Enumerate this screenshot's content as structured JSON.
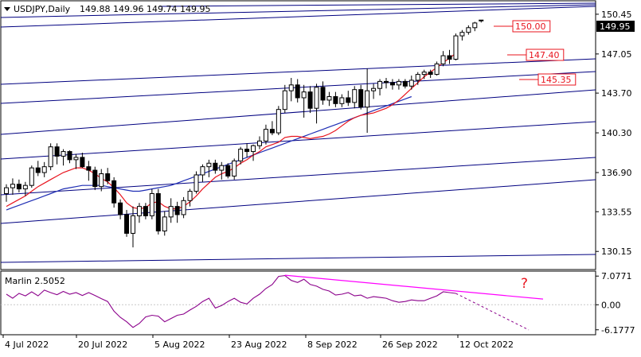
{
  "header": {
    "symbol": "USDJPY,Daily",
    "ohlc": "149.88 149.96 149.74 149.95",
    "price_tag": "149.95"
  },
  "indicator": {
    "name": "Marlin 2.5052",
    "question_mark": "?"
  },
  "levels": [
    {
      "value": "150.00"
    },
    {
      "value": "147.40"
    },
    {
      "value": "145.35"
    }
  ],
  "colors": {
    "price_line": "#000000",
    "ma_red": "#e8141e",
    "ma_blue": "#1e2db4",
    "channel": "#000080",
    "marlin": "#8b008b",
    "divergence": "#ff00ff",
    "level_box": "#e8141e"
  },
  "chart_data": {
    "type": "candlestick",
    "x_tick_labels": [
      "4 Jul 2022",
      "20 Jul 2022",
      "5 Aug 2022",
      "23 Aug 2022",
      "8 Sep 2022",
      "26 Sep 2022",
      "12 Oct 2022"
    ],
    "y_tick_labels": [
      "150.45",
      "147.05",
      "143.70",
      "140.30",
      "136.90",
      "133.55",
      "130.15"
    ],
    "ylim": [
      128.6,
      151.6
    ],
    "indicator_y_tick_labels": [
      "7.0771",
      "0.00",
      "-6.1777"
    ],
    "indicator_ylim": [
      -7.4,
      8.3
    ],
    "candles": [
      [
        135.1,
        135.9,
        134.4,
        135.6
      ],
      [
        135.6,
        136.4,
        135.0,
        135.9
      ],
      [
        135.9,
        136.3,
        135.2,
        135.5
      ],
      [
        135.5,
        136.1,
        134.9,
        135.8
      ],
      [
        135.8,
        137.5,
        135.6,
        137.3
      ],
      [
        137.3,
        137.9,
        136.6,
        136.9
      ],
      [
        136.9,
        137.8,
        136.5,
        137.4
      ],
      [
        137.4,
        139.4,
        137.1,
        139.1
      ],
      [
        139.1,
        139.4,
        137.6,
        138.3
      ],
      [
        138.3,
        138.9,
        137.5,
        138.7
      ],
      [
        138.7,
        138.8,
        137.7,
        138.0
      ],
      [
        138.0,
        138.5,
        137.2,
        138.2
      ],
      [
        138.2,
        138.6,
        137.3,
        137.4
      ],
      [
        137.4,
        137.9,
        136.2,
        137.1
      ],
      [
        137.1,
        137.4,
        135.4,
        135.7
      ],
      [
        135.7,
        137.2,
        135.3,
        136.8
      ],
      [
        136.8,
        137.3,
        135.9,
        136.2
      ],
      [
        136.2,
        136.5,
        133.9,
        134.3
      ],
      [
        134.3,
        134.6,
        132.9,
        133.3
      ],
      [
        133.3,
        133.7,
        131.4,
        131.7
      ],
      [
        131.7,
        134.0,
        130.5,
        133.2
      ],
      [
        133.2,
        134.3,
        132.6,
        134.0
      ],
      [
        134.0,
        134.3,
        132.9,
        133.2
      ],
      [
        133.2,
        135.5,
        132.9,
        135.1
      ],
      [
        135.1,
        135.5,
        131.6,
        131.9
      ],
      [
        131.9,
        133.6,
        131.5,
        133.1
      ],
      [
        133.1,
        134.7,
        132.6,
        134.0
      ],
      [
        134.0,
        134.4,
        132.6,
        133.3
      ],
      [
        133.3,
        134.8,
        133.0,
        134.5
      ],
      [
        134.5,
        135.5,
        134.0,
        135.3
      ],
      [
        135.3,
        137.0,
        135.1,
        136.7
      ],
      [
        136.7,
        137.6,
        136.1,
        137.4
      ],
      [
        137.4,
        138.0,
        136.5,
        137.7
      ],
      [
        137.7,
        138.0,
        136.8,
        137.1
      ],
      [
        137.1,
        137.8,
        136.3,
        137.5
      ],
      [
        137.5,
        137.7,
        136.4,
        136.6
      ],
      [
        136.6,
        138.1,
        136.3,
        137.9
      ],
      [
        137.9,
        139.1,
        137.6,
        138.9
      ],
      [
        138.9,
        139.4,
        138.2,
        138.7
      ],
      [
        138.7,
        139.3,
        137.9,
        139.2
      ],
      [
        139.2,
        140.0,
        138.9,
        139.6
      ],
      [
        139.6,
        141.0,
        139.3,
        140.6
      ],
      [
        140.6,
        141.3,
        140.1,
        140.3
      ],
      [
        140.3,
        142.6,
        140.1,
        142.3
      ],
      [
        142.3,
        144.4,
        142.0,
        143.9
      ],
      [
        143.9,
        145.0,
        143.0,
        144.4
      ],
      [
        144.4,
        144.9,
        142.9,
        143.3
      ],
      [
        143.3,
        144.4,
        141.6,
        143.8
      ],
      [
        143.8,
        144.3,
        142.0,
        142.4
      ],
      [
        142.4,
        144.5,
        141.1,
        144.2
      ],
      [
        144.2,
        144.7,
        142.7,
        143.1
      ],
      [
        143.1,
        143.8,
        142.6,
        143.4
      ],
      [
        143.4,
        143.8,
        142.5,
        142.8
      ],
      [
        142.8,
        143.6,
        142.5,
        143.3
      ],
      [
        143.3,
        143.9,
        142.6,
        142.9
      ],
      [
        142.9,
        144.3,
        142.4,
        144.0
      ],
      [
        144.0,
        144.4,
        142.3,
        142.5
      ],
      [
        142.5,
        145.8,
        140.3,
        143.9
      ],
      [
        143.9,
        144.5,
        143.2,
        144.1
      ],
      [
        144.1,
        144.9,
        143.5,
        144.7
      ],
      [
        144.7,
        145.0,
        144.1,
        144.6
      ],
      [
        144.6,
        144.9,
        144.0,
        144.4
      ],
      [
        144.4,
        144.9,
        144.0,
        144.7
      ],
      [
        144.7,
        144.9,
        144.1,
        144.3
      ],
      [
        144.3,
        145.2,
        144.0,
        144.8
      ],
      [
        144.8,
        145.5,
        144.4,
        145.3
      ],
      [
        145.3,
        145.7,
        144.9,
        145.5
      ],
      [
        145.5,
        145.7,
        145.0,
        145.3
      ],
      [
        145.3,
        146.4,
        145.2,
        146.2
      ],
      [
        146.2,
        147.3,
        146.0,
        146.9
      ],
      [
        146.9,
        147.4,
        146.2,
        146.6
      ],
      [
        146.6,
        148.8,
        146.5,
        148.6
      ],
      [
        148.6,
        149.1,
        148.2,
        148.9
      ],
      [
        148.9,
        149.5,
        148.7,
        149.3
      ],
      [
        149.3,
        149.8,
        149.0,
        149.7
      ],
      [
        149.88,
        149.96,
        149.74,
        149.95
      ]
    ],
    "ma_red": [
      134.0,
      134.3,
      134.6,
      134.9,
      135.3,
      135.7,
      136.0,
      136.3,
      136.6,
      136.9,
      137.1,
      137.3,
      137.3,
      137.1,
      136.8,
      136.4,
      136.1,
      135.6,
      135.0,
      134.3,
      133.9,
      133.8,
      133.9,
      134.3,
      134.4,
      134.0,
      133.8,
      133.8,
      134.0,
      134.4,
      134.9,
      135.5,
      136.0,
      136.5,
      136.8,
      137.0,
      137.3,
      137.7,
      138.0,
      138.4,
      138.7,
      139.1,
      139.3,
      139.5,
      139.9,
      140.0,
      140.0,
      139.9,
      139.8,
      139.9,
      140.0,
      140.2,
      140.5,
      140.9,
      141.3,
      141.6,
      141.8,
      141.9,
      142.0,
      142.2,
      142.4,
      142.7,
      143.1,
      143.6,
      144.1,
      144.6,
      145.1,
      145.5,
      145.9,
      146.3,
      146.7,
      147.1
    ],
    "ma_blue": [
      133.7,
      133.9,
      134.1,
      134.3,
      134.5,
      134.7,
      134.9,
      135.1,
      135.3,
      135.5,
      135.6,
      135.7,
      135.8,
      135.8,
      135.8,
      135.8,
      135.7,
      135.6,
      135.5,
      135.4,
      135.3,
      135.3,
      135.4,
      135.5,
      135.6,
      135.7,
      135.8,
      136.0,
      136.2,
      136.4,
      136.6,
      136.8,
      137.0,
      137.2,
      137.4,
      137.6,
      137.8,
      138.0,
      138.2,
      138.4,
      138.6,
      138.8,
      139.0,
      139.2,
      139.4,
      139.6,
      139.8,
      140.0,
      140.2,
      140.4,
      140.6,
      140.8,
      141.0,
      141.2,
      141.4,
      141.6,
      141.8,
      142.0,
      142.2,
      142.4,
      142.6,
      142.8,
      143.0,
      143.2,
      143.4
    ],
    "marlin": [
      2.6,
      1.6,
      2.8,
      2.2,
      3.2,
      2.2,
      3.6,
      3.0,
      2.5,
      3.3,
      2.6,
      3.0,
      2.3,
      3.0,
      2.3,
      1.5,
      0.8,
      -1.6,
      -3.1,
      -4.2,
      -5.6,
      -4.6,
      -3.0,
      -2.6,
      -2.8,
      -4.2,
      -3.4,
      -2.6,
      -2.3,
      -1.3,
      -0.4,
      0.8,
      1.6,
      -0.8,
      -0.2,
      0.8,
      1.6,
      0.6,
      0.2,
      1.6,
      2.6,
      4.0,
      5.0,
      7.0,
      7.2,
      6.0,
      5.5,
      6.3,
      5.0,
      4.6,
      3.8,
      3.4,
      2.4,
      2.6,
      3.0,
      2.2,
      2.4,
      1.6,
      2.0,
      1.8,
      1.6,
      1.0,
      0.6,
      0.8,
      1.2,
      1.0,
      1.0,
      1.6,
      2.2,
      3.2,
      3.0,
      2.8
    ]
  }
}
